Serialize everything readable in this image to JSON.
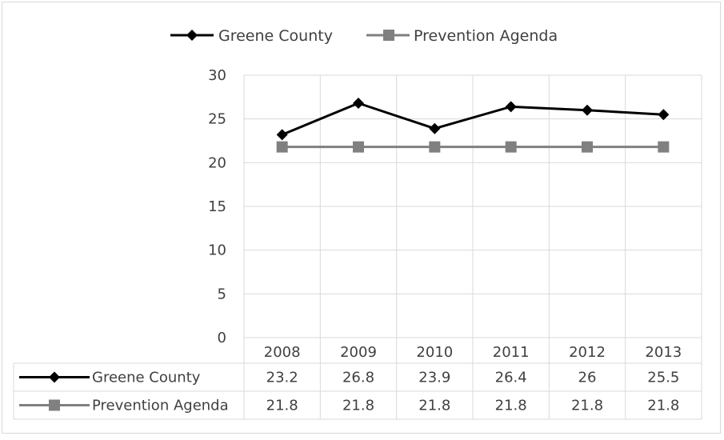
{
  "chart_data": {
    "type": "line",
    "categories": [
      "2008",
      "2009",
      "2010",
      "2011",
      "2012",
      "2013"
    ],
    "series": [
      {
        "name": "Greene County",
        "values": [
          23.2,
          26.8,
          23.9,
          26.4,
          26,
          25.5
        ],
        "labels": [
          "23.2",
          "26.8",
          "23.9",
          "26.4",
          "26",
          "25.5"
        ],
        "color": "#000000",
        "marker": "diamond"
      },
      {
        "name": "Prevention Agenda",
        "values": [
          21.8,
          21.8,
          21.8,
          21.8,
          21.8,
          21.8
        ],
        "labels": [
          "21.8",
          "21.8",
          "21.8",
          "21.8",
          "21.8",
          "21.8"
        ],
        "color": "#808080",
        "marker": "square"
      }
    ],
    "y_ticks": [
      "0",
      "5",
      "10",
      "15",
      "20",
      "25",
      "30"
    ],
    "ylim": [
      0,
      30
    ],
    "grid": true,
    "legend_position": "top",
    "data_table": true
  }
}
